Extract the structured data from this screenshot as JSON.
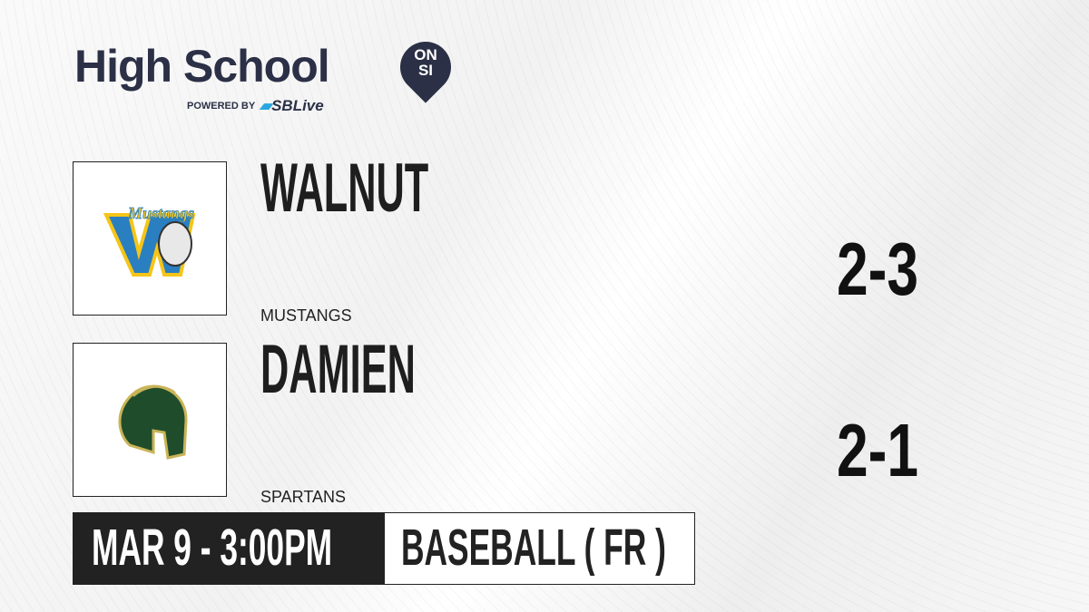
{
  "brand": {
    "title": "High School",
    "badge_top": "ON",
    "badge_bottom": "SI",
    "powered_by": "POWERED BY",
    "partner": "SBLive",
    "color": "#2b3046",
    "partner_accent": "#2aa7e0"
  },
  "teams": [
    {
      "name": "WALNUT",
      "mascot": "MUSTANGS",
      "record": "2-3",
      "logo": "mustangs-logo",
      "colors": [
        "#f5c518",
        "#2a7fc1"
      ]
    },
    {
      "name": "DAMIEN",
      "mascot": "SPARTANS",
      "record": "2-1",
      "logo": "spartan-helmet-logo",
      "colors": [
        "#1f4d2b",
        "#c9b458"
      ]
    }
  ],
  "game": {
    "datetime": "MAR 9 - 3:00PM",
    "sport": "BASEBALL ( FR )"
  }
}
